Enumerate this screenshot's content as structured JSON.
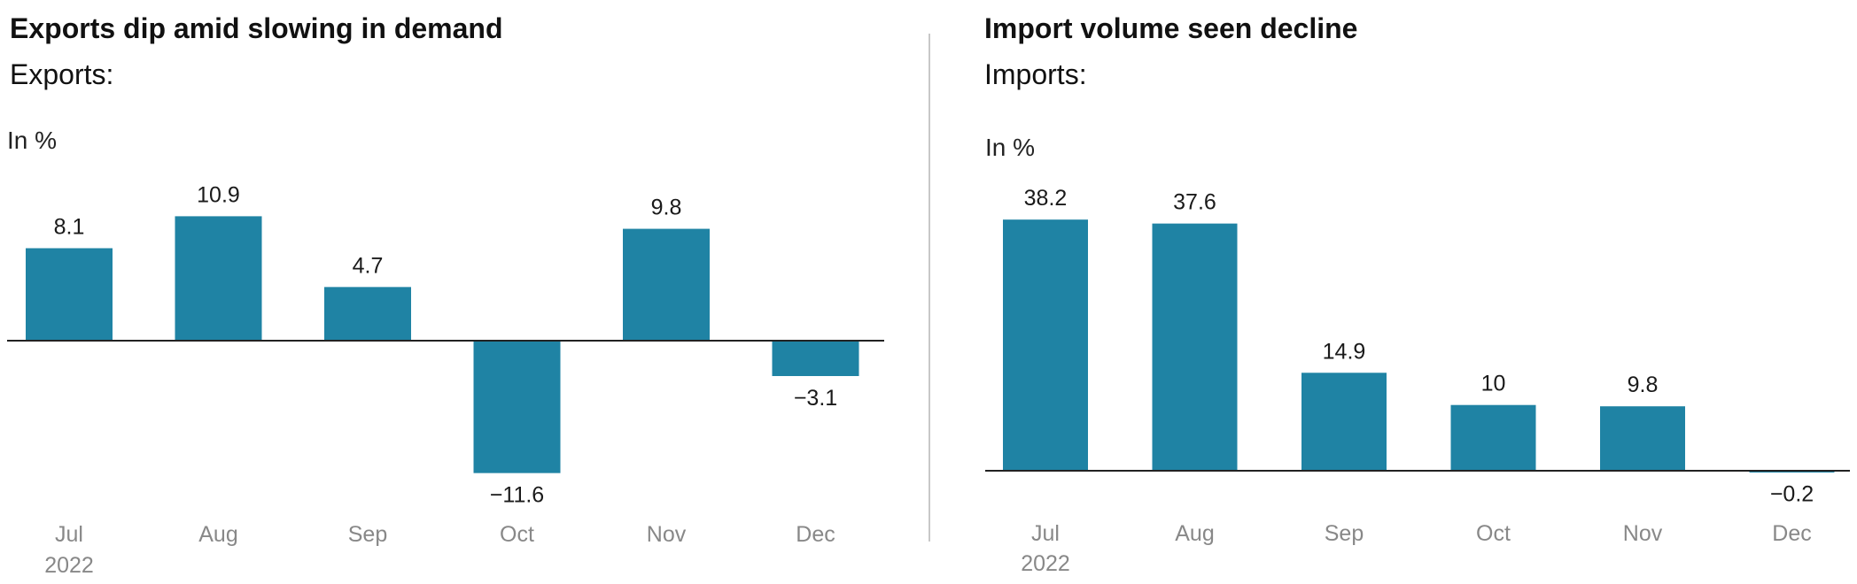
{
  "chart_data": [
    {
      "type": "bar",
      "title": "Exports dip amid slowing in demand",
      "subtitle": "Exports:",
      "unit_label": "In %",
      "categories": [
        "Jul",
        "Aug",
        "Sep",
        "Oct",
        "Nov",
        "Dec"
      ],
      "year_label": "2022",
      "values": [
        8.1,
        10.9,
        4.7,
        -11.6,
        9.8,
        -3.1
      ],
      "value_labels": [
        "8.1",
        "10.9",
        "4.7",
        "−11.6",
        "9.8",
        "−3.1"
      ],
      "ylim": [
        -11.6,
        10.9
      ],
      "grid": false,
      "bar_color": "#1f83a4"
    },
    {
      "type": "bar",
      "title": "Import volume seen decline",
      "subtitle": "Imports:",
      "unit_label": "In %",
      "categories": [
        "Jul",
        "Aug",
        "Sep",
        "Oct",
        "Nov",
        "Dec"
      ],
      "year_label": "2022",
      "values": [
        38.2,
        37.6,
        14.9,
        10,
        9.8,
        -0.2
      ],
      "value_labels": [
        "38.2",
        "37.6",
        "14.9",
        "10",
        "9.8",
        "−0.2"
      ],
      "ylim": [
        -0.2,
        38.2
      ],
      "grid": false,
      "bar_color": "#1f83a4"
    }
  ]
}
